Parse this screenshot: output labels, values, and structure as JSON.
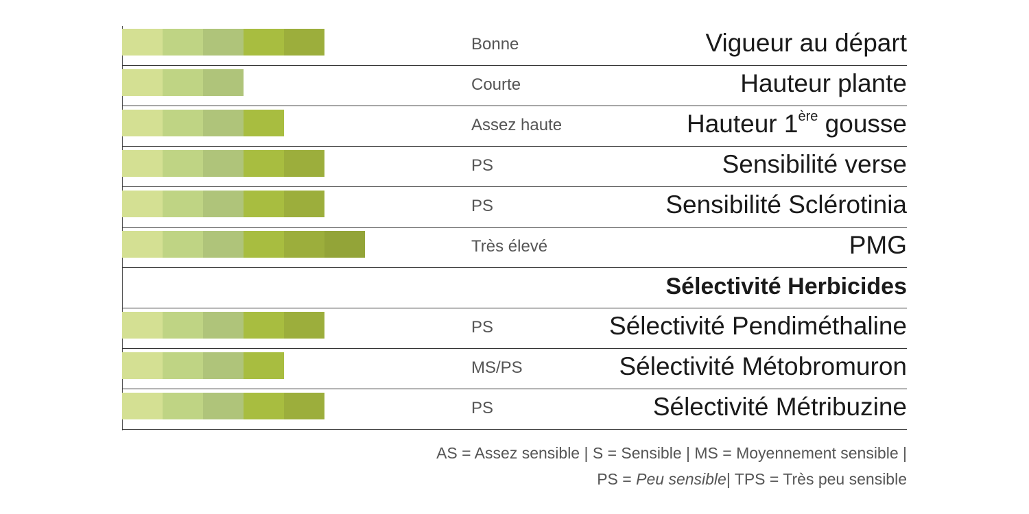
{
  "chart_data": {
    "type": "bar",
    "scale_max": 6,
    "segment_colors": [
      "#d4e093",
      "#bfd484",
      "#afc47a",
      "#a8bd40",
      "#9cae3c",
      "#93a438"
    ],
    "rows": [
      {
        "label": "Vigueur au départ",
        "rating": "Bonne",
        "value": 5
      },
      {
        "label": "Hauteur plante",
        "rating": "Courte",
        "value": 3
      },
      {
        "label": "Hauteur 1ère gousse",
        "label_main": "Hauteur 1",
        "label_sup": "ère",
        "label_tail": " gousse",
        "rating": "Assez haute",
        "value": 4
      },
      {
        "label": "Sensibilité verse",
        "rating": "PS",
        "value": 5
      },
      {
        "label": "Sensibilité Sclérotinia",
        "rating": "PS",
        "value": 5
      },
      {
        "label": "PMG",
        "rating": "Très élevé",
        "value": 6
      },
      {
        "label": "Sélectivité Herbicides",
        "rating": "",
        "value": 0,
        "heading": true
      },
      {
        "label": "Sélectivité Pendiméthaline",
        "rating": "PS",
        "value": 5
      },
      {
        "label": "Sélectivité Métobromuron",
        "rating": "MS/PS",
        "value": 4
      },
      {
        "label": "Sélectivité Métribuzine",
        "rating": "PS",
        "value": 5
      }
    ]
  },
  "legend": {
    "line1": "AS = Assez sensible | S = Sensible | MS = Moyennement sensible |",
    "line2_prefix": "PS = ",
    "line2_italic": "Peu sensible",
    "line2_suffix": "| TPS = Très  peu sensible"
  }
}
